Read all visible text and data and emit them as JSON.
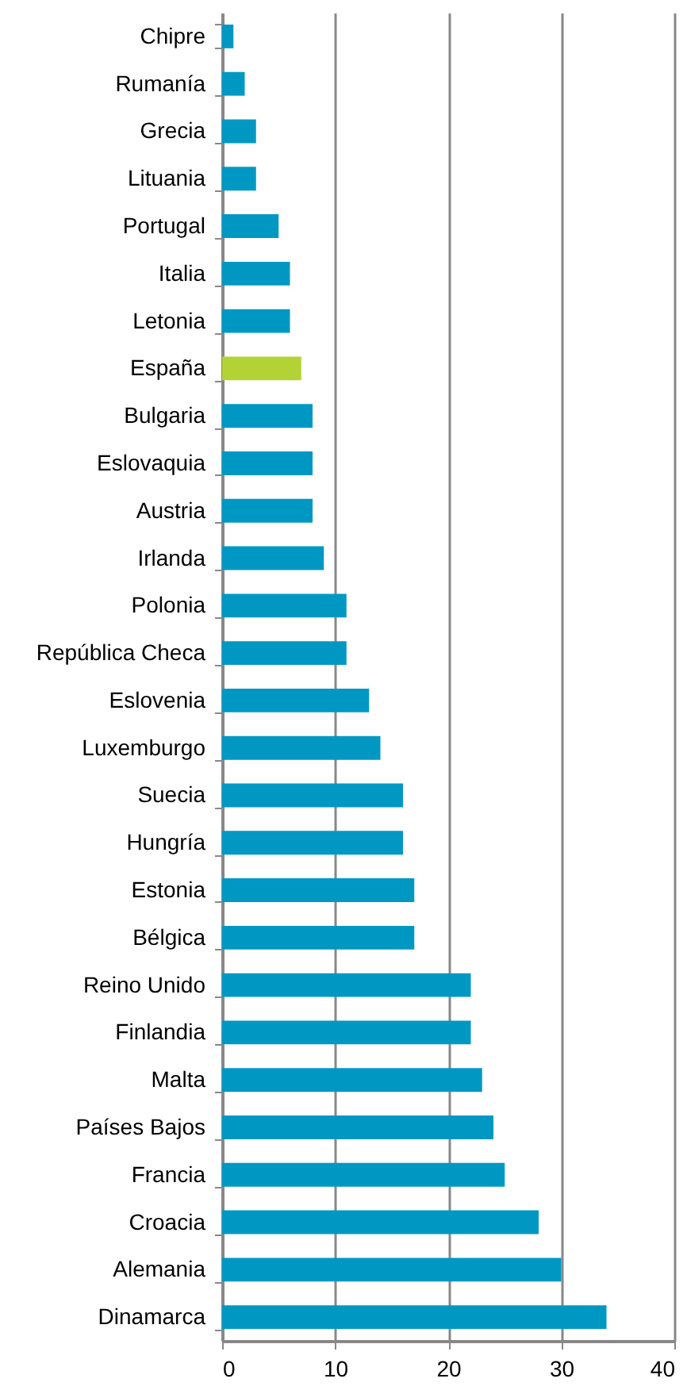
{
  "chart_data": {
    "type": "bar",
    "orientation": "horizontal",
    "categories": [
      "Chipre",
      "Rumanía",
      "Grecia",
      "Lituania",
      "Portugal",
      "Italia",
      "Letonia",
      "España",
      "Bulgaria",
      "Eslovaquia",
      "Austria",
      "Irlanda",
      "Polonia",
      "República Checa",
      "Eslovenia",
      "Luxemburgo",
      "Suecia",
      "Hungría",
      "Estonia",
      "Bélgica",
      "Reino Unido",
      "Finlandia",
      "Malta",
      "Países Bajos",
      "Francia",
      "Croacia",
      "Alemania",
      "Dinamarca"
    ],
    "values": [
      1,
      2,
      3,
      3,
      5,
      6,
      6,
      7,
      8,
      8,
      8,
      9,
      11,
      11,
      13,
      14,
      16,
      16,
      17,
      17,
      22,
      22,
      23,
      24,
      25,
      28,
      30,
      34
    ],
    "colors": [
      "#0098c3",
      "#0098c3",
      "#0098c3",
      "#0098c3",
      "#0098c3",
      "#0098c3",
      "#0098c3",
      "#b3d235",
      "#0098c3",
      "#0098c3",
      "#0098c3",
      "#0098c3",
      "#0098c3",
      "#0098c3",
      "#0098c3",
      "#0098c3",
      "#0098c3",
      "#0098c3",
      "#0098c3",
      "#0098c3",
      "#0098c3",
      "#0098c3",
      "#0098c3",
      "#0098c3",
      "#0098c3",
      "#0098c3",
      "#0098c3",
      "#0098c3"
    ],
    "xlim": [
      0,
      40
    ],
    "xticks": [
      0,
      10,
      20,
      30,
      40
    ],
    "grid": "x"
  }
}
